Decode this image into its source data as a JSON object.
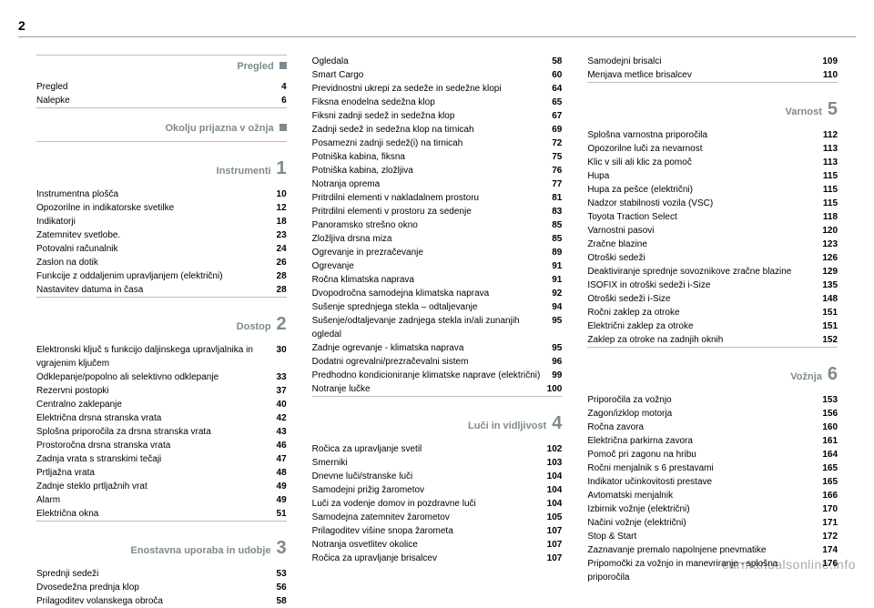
{
  "page_number": "2",
  "watermark": "carmanualsonline.info",
  "colors": {
    "section_heading": "#7d8a8f",
    "rule": "#bbbbbb",
    "text": "#000000"
  },
  "columns": [
    {
      "sections": [
        {
          "title": "Pregled",
          "marker": "square",
          "entries": [
            {
              "label": "Pregled",
              "page": "4"
            },
            {
              "label": "Nalepke",
              "page": "6"
            }
          ]
        },
        {
          "title": "Okolju prijazna v ožnja",
          "marker": "square",
          "entries": []
        },
        {
          "title": "Instrumenti",
          "marker": "1",
          "entries": [
            {
              "label": "Instrumentna plošča",
              "page": "10"
            },
            {
              "label": "Opozorilne in indikatorske svetilke",
              "page": "12"
            },
            {
              "label": "Indikatorji",
              "page": "18"
            },
            {
              "label": "Zatemnitev svetlobe.",
              "page": "23"
            },
            {
              "label": "Potovalni računalnik",
              "page": "24"
            },
            {
              "label": "Zaslon na dotik",
              "page": "26"
            },
            {
              "label": "Funkcije z oddaljenim upravljanjem (električni)",
              "page": "28"
            },
            {
              "label": "Nastavitev datuma in časa",
              "page": "28"
            }
          ]
        },
        {
          "title": "Dostop",
          "marker": "2",
          "entries": [
            {
              "label": "Elektronski ključ s funkcijo daljinskega upravljalnika in vgrajenim ključem",
              "page": "30"
            },
            {
              "label": "Odklepanje/popolno ali selektivno odklepanje",
              "page": "33"
            },
            {
              "label": "Rezervni postopki",
              "page": "37"
            },
            {
              "label": "Centralno zaklepanje",
              "page": "40"
            },
            {
              "label": "Električna drsna stranska vrata",
              "page": "42"
            },
            {
              "label": "Splošna priporočila za drsna stranska vrata",
              "page": "43"
            },
            {
              "label": "Prostoročna drsna stranska vrata",
              "page": "46"
            },
            {
              "label": "Zadnja vrata s stranskimi tečaji",
              "page": "47"
            },
            {
              "label": "Prtljažna vrata",
              "page": "48"
            },
            {
              "label": "Zadnje steklo prtljažnih vrat",
              "page": "49"
            },
            {
              "label": "Alarm",
              "page": "49"
            },
            {
              "label": "Električna okna",
              "page": "51"
            }
          ]
        },
        {
          "title": "Enostavna uporaba in udobje",
          "marker": "3",
          "entries": [
            {
              "label": "Sprednji sedeži",
              "page": "53"
            },
            {
              "label": "Dvosedežna prednja klop",
              "page": "56"
            },
            {
              "label": "Prilagoditev volanskega obroča",
              "page": "58"
            }
          ]
        }
      ]
    },
    {
      "sections": [
        {
          "title": "",
          "marker": "",
          "entries": [
            {
              "label": "Ogledala",
              "page": "58"
            },
            {
              "label": "Smart Cargo",
              "page": "60"
            },
            {
              "label": "Previdnostni ukrepi za sedeže in sedežne klopi",
              "page": "64"
            },
            {
              "label": "Fiksna enodelna sedežna klop",
              "page": "65"
            },
            {
              "label": "Fiksni zadnji sedež in sedežna klop",
              "page": "67"
            },
            {
              "label": "Zadnji sedež in sedežna klop na tirnicah",
              "page": "69"
            },
            {
              "label": "Posamezni zadnji sedež(i) na tirnicah",
              "page": "72"
            },
            {
              "label": "Potniška kabina, fiksna",
              "page": "75"
            },
            {
              "label": "Potniška kabina, zložljiva",
              "page": "76"
            },
            {
              "label": "Notranja oprema",
              "page": "77"
            },
            {
              "label": "Pritrdilni elementi v nakladalnem prostoru",
              "page": "81"
            },
            {
              "label": "Pritrdilni elementi v prostoru za sedenje",
              "page": "83"
            },
            {
              "label": "Panoramsko strešno okno",
              "page": "85"
            },
            {
              "label": "Zložljiva drsna miza",
              "page": "85"
            },
            {
              "label": "Ogrevanje in prezračevanje",
              "page": "89"
            },
            {
              "label": "Ogrevanje",
              "page": "91"
            },
            {
              "label": "Ročna klimatska naprava",
              "page": "91"
            },
            {
              "label": "Dvopodročna samodejna klimatska naprava",
              "page": "92"
            },
            {
              "label": "Sušenje sprednjega stekla – odtaljevanje",
              "page": "94"
            },
            {
              "label": "Sušenje/odtaljevanje zadnjega stekla in/ali zunanjih ogledal",
              "page": "95"
            },
            {
              "label": "Zadnje ogrevanje - klimatska naprava",
              "page": "95"
            },
            {
              "label": "Dodatni ogrevalni/prezračevalni sistem",
              "page": "96"
            },
            {
              "label": "Predhodno kondicioniranje klimatske naprave (električni)",
              "page": "99"
            },
            {
              "label": "Notranje lučke",
              "page": "100"
            }
          ]
        },
        {
          "title": "Luči in vidljivost",
          "marker": "4",
          "entries": [
            {
              "label": "Ročica za upravljanje svetil",
              "page": "102"
            },
            {
              "label": "Smerniki",
              "page": "103"
            },
            {
              "label": "Dnevne luči/stranske luči",
              "page": "104"
            },
            {
              "label": "Samodejni prižig žarometov",
              "page": "104"
            },
            {
              "label": "Luči za vodenje domov in pozdravne luči",
              "page": "104"
            },
            {
              "label": "Samodejna zatemnitev žarometov",
              "page": "105"
            },
            {
              "label": "Prilagoditev višine snopa žarometa",
              "page": "107"
            },
            {
              "label": "Notranja osvetlitev okolice",
              "page": "107"
            },
            {
              "label": "Ročica za upravljanje brisalcev",
              "page": "107"
            }
          ]
        }
      ]
    },
    {
      "sections": [
        {
          "title": "",
          "marker": "",
          "entries": [
            {
              "label": "Samodejni brisalci",
              "page": "109"
            },
            {
              "label": "Menjava metlice brisalcev",
              "page": "110"
            }
          ]
        },
        {
          "title": "Varnost",
          "marker": "5",
          "entries": [
            {
              "label": "Splošna varnostna priporočila",
              "page": "112"
            },
            {
              "label": "Opozorilne luči za nevarnost",
              "page": "113"
            },
            {
              "label": "Klic v sili ali klic za pomoč",
              "page": "113"
            },
            {
              "label": "Hupa",
              "page": "115"
            },
            {
              "label": "Hupa za pešce (električni)",
              "page": "115"
            },
            {
              "label": "Nadzor stabilnosti vozila (VSC)",
              "page": "115"
            },
            {
              "label": "Toyota Traction Select",
              "page": "118"
            },
            {
              "label": "Varnostni pasovi",
              "page": "120"
            },
            {
              "label": "Zračne blazine",
              "page": "123"
            },
            {
              "label": "Otroški sedeži",
              "page": "126"
            },
            {
              "label": "Deaktiviranje sprednje sovoznikove zračne blazine",
              "page": "129"
            },
            {
              "label": "ISOFIX in otroški sedeži i-Size",
              "page": "135"
            },
            {
              "label": "Otroški sedeži i-Size",
              "page": "148"
            },
            {
              "label": "Ročni zaklep za otroke",
              "page": "151"
            },
            {
              "label": "Električni zaklep za otroke",
              "page": "151"
            },
            {
              "label": "Zaklep za otroke na zadnjih oknih",
              "page": "152"
            }
          ]
        },
        {
          "title": "Vožnja",
          "marker": "6",
          "entries": [
            {
              "label": "Priporočila za vožnjo",
              "page": "153"
            },
            {
              "label": "Zagon/izklop motorja",
              "page": "156"
            },
            {
              "label": "Ročna zavora",
              "page": "160"
            },
            {
              "label": "Električna parkirna zavora",
              "page": "161"
            },
            {
              "label": "Pomoč pri zagonu na hribu",
              "page": "164"
            },
            {
              "label": "Ročni menjalnik s 6 prestavami",
              "page": "165"
            },
            {
              "label": "Indikator učinkovitosti prestave",
              "page": "165"
            },
            {
              "label": "Avtomatski menjalnik",
              "page": "166"
            },
            {
              "label": "Izbirnik vožnje (električni)",
              "page": "170"
            },
            {
              "label": "Načini vožnje (električni)",
              "page": "171"
            },
            {
              "label": "Stop & Start",
              "page": "172"
            },
            {
              "label": "Zaznavanje premalo napolnjene pnevmatike",
              "page": "174"
            },
            {
              "label": "Pripomočki za vožnjo in manevriranje - splošna priporočila",
              "page": "176"
            }
          ]
        }
      ]
    }
  ]
}
